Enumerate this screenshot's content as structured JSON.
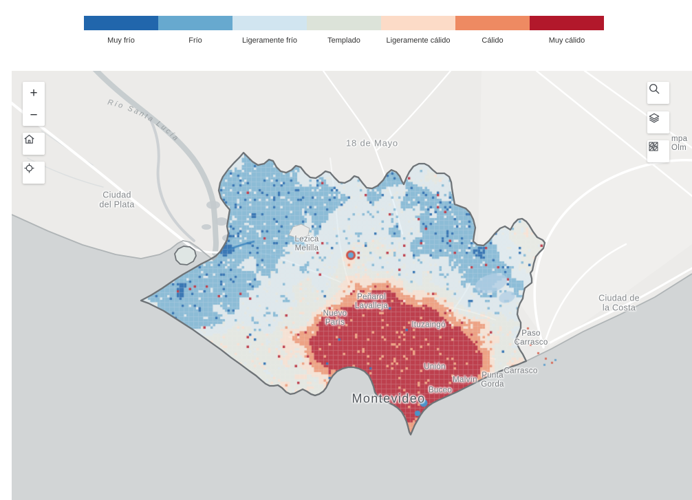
{
  "legend": {
    "classes": [
      {
        "label": "Muy frío",
        "color": "#2166ac"
      },
      {
        "label": "Frío",
        "color": "#67a9cf"
      },
      {
        "label": "Ligeramente frío",
        "color": "#d1e5f0"
      },
      {
        "label": "Templado",
        "color": "#dce3d9"
      },
      {
        "label": "Ligeramente cálido",
        "color": "#fcdbc7"
      },
      {
        "label": "Cálido",
        "color": "#ee8a62"
      },
      {
        "label": "Muy cálido",
        "color": "#b2182b"
      }
    ]
  },
  "controls": {
    "zoom_in_label": "+",
    "zoom_out_label": "−",
    "icons": [
      "home-icon",
      "locate-icon",
      "search-icon",
      "layers-icon",
      "basemap-gallery-icon"
    ]
  },
  "map": {
    "colors": {
      "land": "#ecebe9",
      "land_east": "#f1f0ee",
      "water": "#d2d5d6",
      "river": "#c5cbce",
      "boundary": "#6e7377",
      "road": "#ffffff"
    },
    "river_label": "Río Santa Lucía",
    "labels": [
      {
        "name": "18-de-mayo",
        "text": "18 de Mayo"
      },
      {
        "name": "ciudad-del-plata",
        "text": "Ciudad\ndel Plata"
      },
      {
        "name": "lezica-melilla",
        "text": "Lezica\nMelilla"
      },
      {
        "name": "nuevo-paris",
        "text": "Nuevo\nParís"
      },
      {
        "name": "penarol-lavalleja",
        "text": "Peñarol\nLavalleja"
      },
      {
        "name": "ituzaingo",
        "text": "Ituzaingó"
      },
      {
        "name": "union",
        "text": "Unión"
      },
      {
        "name": "malvin",
        "text": "Malvín"
      },
      {
        "name": "punta-gorda",
        "text": "Punta\nGorda"
      },
      {
        "name": "buceo",
        "text": "Buceo"
      },
      {
        "name": "carrasco",
        "text": "Carrasco"
      },
      {
        "name": "paso-carrasco",
        "text": "Paso\nCarrasco"
      },
      {
        "name": "ciudad-de-la-costa",
        "text": "Ciudad de\nla Costa"
      },
      {
        "name": "montevideo",
        "text": "Montevideo"
      },
      {
        "name": "partial-east-label",
        "text": "mpa\nOlm"
      }
    ]
  }
}
